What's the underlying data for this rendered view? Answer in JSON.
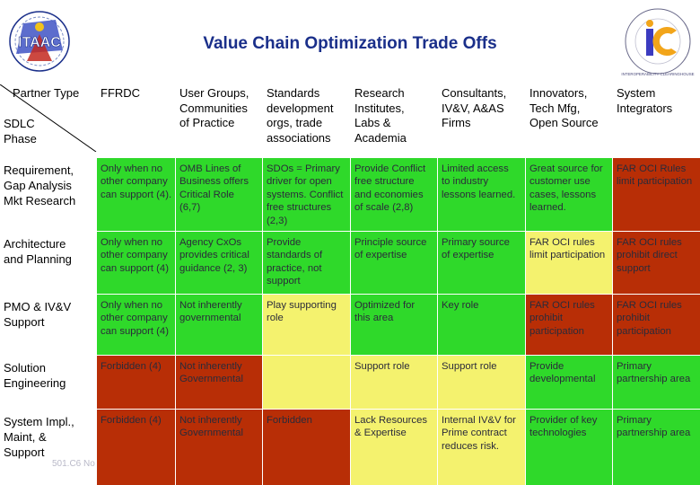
{
  "title": "Value Chain Optimization Trade Offs",
  "logos": {
    "left_text": "ITAAC",
    "right_text": "INTEROPERABILITY CLEARINGHOUSE",
    "right_letters": "ic"
  },
  "corner": {
    "top": "Partner Type",
    "bottom": "SDLC\nPhase"
  },
  "columns": [
    "FFRDC",
    "User Groups,\nCommunities\nof Practice",
    "Standards\ndevelopment\norgs, trade\nassociations",
    "Research\nInstitutes,\nLabs &\nAcademia",
    "Consultants,\nIV&V, A&AS\nFirms",
    "Innovators,\nTech Mfg,\nOpen Source",
    "System\nIntegrators"
  ],
  "rows": [
    {
      "phase": "Requirement,\nGap Analysis\nMkt Research",
      "cells": [
        {
          "text": "Only when no\nother company\ncan support (4).",
          "status": "green"
        },
        {
          "text": "OMB Lines of\nBusiness offers\nCritical Role\n(6,7)",
          "status": "green"
        },
        {
          "text": "SDOs = Primary\ndriver for open\nsystems. Conflict\nfree structures\n(2,3)",
          "status": "green"
        },
        {
          "text": "Provide Conflict\nfree structure\nand economies\nof scale (2,8)",
          "status": "green"
        },
        {
          "text": "Limited access\nto industry\nlessons learned.",
          "status": "green"
        },
        {
          "text": "Great source for\ncustomer use\ncases, lessons\nlearned.",
          "status": "green"
        },
        {
          "text": "FAR OCI Rules\nlimit participation",
          "status": "red"
        }
      ]
    },
    {
      "phase": "Architecture\nand Planning",
      "cells": [
        {
          "text": "Only when no\nother company\ncan support (4)",
          "status": "green"
        },
        {
          "text": "Agency CxOs\nprovides critical\nguidance (2, 3)",
          "status": "green"
        },
        {
          "text": "Provide\nstandards of\npractice, not\nsupport",
          "status": "green"
        },
        {
          "text": "Principle source\nof expertise",
          "status": "green"
        },
        {
          "text": "Primary source\nof expertise",
          "status": "green"
        },
        {
          "text": "FAR OCI rules\nlimit participation",
          "status": "yellow"
        },
        {
          "text": "FAR OCI rules\nprohibit direct\nsupport",
          "status": "red"
        }
      ]
    },
    {
      "phase": "PMO & IV&V\nSupport",
      "cells": [
        {
          "text": "Only when no\nother company\ncan support (4)",
          "status": "green"
        },
        {
          "text": "Not inherently\ngovernmental",
          "status": "green"
        },
        {
          "text": "Play supporting\nrole",
          "status": "yellow"
        },
        {
          "text": "Optimized for\nthis area",
          "status": "green"
        },
        {
          "text": "Key role",
          "status": "green"
        },
        {
          "text": "FAR OCI rules\nprohibit\nparticipation",
          "status": "red"
        },
        {
          "text": "FAR OCI rules\nprohibit\nparticipation",
          "status": "red"
        }
      ]
    },
    {
      "phase": "Solution\nEngineering",
      "cells": [
        {
          "text": "Forbidden (4)",
          "status": "red"
        },
        {
          "text": "Not inherently\nGovernmental",
          "status": "red"
        },
        {
          "text": "",
          "status": "yellow"
        },
        {
          "text": "Support role",
          "status": "yellow"
        },
        {
          "text": "Support role",
          "status": "yellow"
        },
        {
          "text": "Provide\ndevelopmental",
          "status": "green"
        },
        {
          "text": "Primary\npartnership area",
          "status": "green"
        }
      ]
    },
    {
      "phase": "System Impl.,\nMaint, &\nSupport",
      "cells": [
        {
          "text": "Forbidden (4)",
          "status": "red"
        },
        {
          "text": "Not inherently\nGovernmental",
          "status": "red"
        },
        {
          "text": "Forbidden",
          "status": "red"
        },
        {
          "text": "Lack Resources\n& Expertise",
          "status": "yellow"
        },
        {
          "text": "Internal IV&V for\nPrime contract\nreduces risk.",
          "status": "yellow"
        },
        {
          "text": "Provider of key\ntechnologies",
          "status": "green"
        },
        {
          "text": "Primary\npartnership area",
          "status": "green"
        }
      ]
    }
  ],
  "footer": "501.C6 No",
  "colors": {
    "green": "#2fd92a",
    "yellow": "#f4f26e",
    "red": "#b82e06",
    "title": "#1a2f8a"
  }
}
